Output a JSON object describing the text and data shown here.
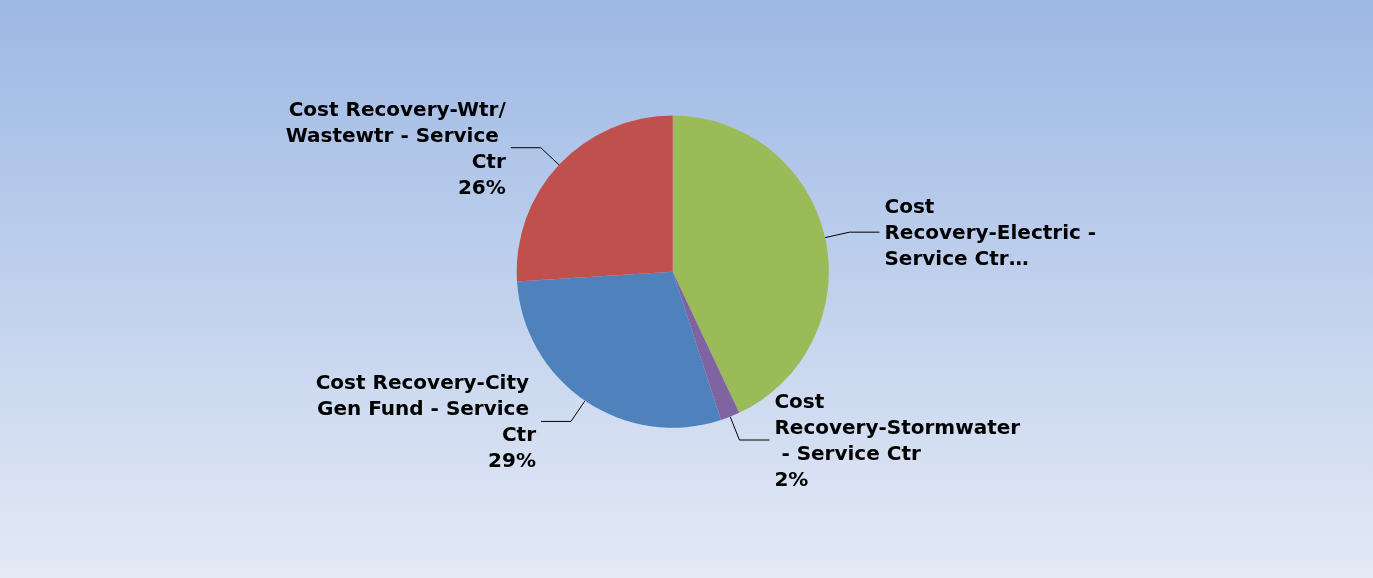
{
  "chart_data": {
    "type": "pie",
    "categories": [
      "Cost Recovery-Electric - Service Ctr…",
      "Cost Recovery-Stormwater - Service Ctr",
      "Cost Recovery-City Gen Fund - Service Ctr",
      "Cost Recovery-Wtr/Wastewtr - Service Ctr"
    ],
    "values": [
      43,
      2,
      29,
      26
    ],
    "value_labels": [
      null,
      "2%",
      "29%",
      "26%"
    ],
    "colors": [
      "#9bbb59",
      "#8064a2",
      "#4f81bd",
      "#c0504d"
    ]
  }
}
